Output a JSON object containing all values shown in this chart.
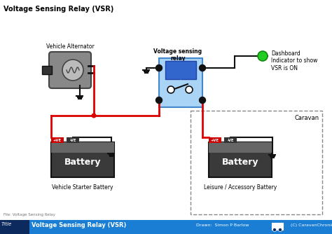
{
  "title": "Voltage Sensing Relay (VSR)",
  "bg_color": "#ffffff",
  "footer_file": "File: Voltage Sensing Relay",
  "footer_title": "Voltage Sensing Relay (VSR)",
  "footer_drawn": "Drawn:  Simon P Barlow",
  "footer_copy": "(C) CaravanChronicles.com",
  "footer_bg": "#1a7fd4",
  "footer_dark_bg": "#0d2a5e",
  "alternator_label": "Vehicle Alternator",
  "vsr_label": "Voltage sensing\nrelay",
  "dashboard_label": "Dashboard\nIndicator to show\nVSR is ON",
  "caravan_label": "Caravan",
  "battery1_label": "Battery",
  "battery1_sublabel": "Vehicle Starter Battery",
  "battery2_label": "Battery",
  "battery2_sublabel": "Leisure / Accessory Battery",
  "red_color": "#dd0000",
  "black_color": "#111111",
  "blue_light": "#aad4f5",
  "blue_dark": "#3366cc",
  "gray_dark": "#444444",
  "gray_medium": "#888888",
  "gray_light": "#bbbbbb",
  "green_indicator": "#22cc22",
  "caravan_box_color": "#888888",
  "battery_bg_left": "#444444",
  "battery_bg_right": "#555555",
  "plus_color": "#cc0000",
  "minus_color": "#555555",
  "wire_black": "#111111",
  "wire_red": "#dd0000"
}
